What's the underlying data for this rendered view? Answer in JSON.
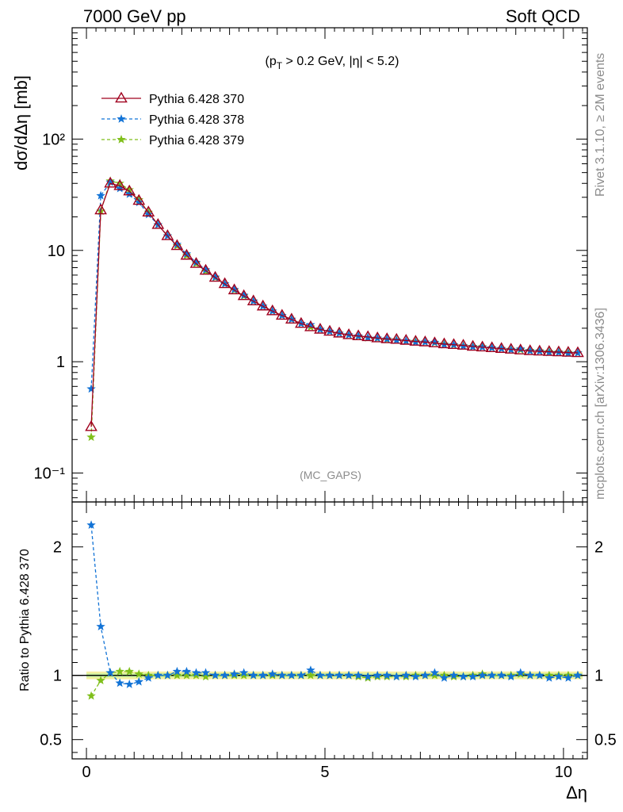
{
  "header": {
    "energy_label": "7000 GeV pp",
    "category_label": "Soft QCD"
  },
  "side_labels": {
    "rivet": "Rivet 3.1.10, ≥ 2M events",
    "mcplots": "mcplots.cern.ch [arXiv:1306.3436]"
  },
  "colors": {
    "pythia_370": "#a0001e",
    "pythia_378": "#1273d6",
    "pythia_379": "#7fbf1a",
    "band": "#f5f0a0",
    "band_inner": "#c8f0a0"
  },
  "chart_data": [
    {
      "type": "line",
      "panel": "main",
      "title": "(p_T > 0.2 GeV, |η| < 5.2)",
      "title_parts": {
        "open": "(p",
        "sub": "T",
        "rest": " > 0.2 GeV, |η| < 5.2)"
      },
      "annotation": "(MC_GAPS)",
      "xlabel": "Δη",
      "ylabel": "dσ/dΔη [mb]",
      "yscale": "log",
      "xlim": [
        -0.3,
        10.5
      ],
      "ylim": [
        0.055,
        1000
      ],
      "x_ticks": [
        "0",
        "5",
        "10"
      ],
      "y_ticks": [
        {
          "label": "10⁻¹",
          "value": 0.1
        },
        {
          "label": "1",
          "value": 1
        },
        {
          "label": "10",
          "value": 10
        },
        {
          "label": "10²",
          "value": 100
        }
      ],
      "legend_position": "top-left",
      "series": [
        {
          "name": "Pythia 6.428 370",
          "marker": "triangle",
          "dash": "solid",
          "x": [
            0.1,
            0.3,
            0.5,
            0.7,
            0.9,
            1.1,
            1.3,
            1.5,
            1.7,
            1.9,
            2.1,
            2.3,
            2.5,
            2.7,
            2.9,
            3.1,
            3.3,
            3.5,
            3.7,
            3.9,
            4.1,
            4.3,
            4.5,
            4.7,
            4.9,
            5.1,
            5.3,
            5.5,
            5.7,
            5.9,
            6.1,
            6.3,
            6.5,
            6.7,
            6.9,
            7.1,
            7.3,
            7.5,
            7.7,
            7.9,
            8.1,
            8.3,
            8.5,
            8.7,
            8.9,
            9.1,
            9.3,
            9.5,
            9.7,
            9.9,
            10.1,
            10.3
          ],
          "y": [
            0.26,
            23.0,
            40.0,
            38.0,
            34.0,
            28.0,
            22.0,
            17.0,
            13.5,
            11.0,
            9.0,
            7.6,
            6.6,
            5.7,
            5.0,
            4.4,
            3.9,
            3.5,
            3.15,
            2.85,
            2.6,
            2.4,
            2.2,
            2.05,
            1.95,
            1.87,
            1.8,
            1.74,
            1.7,
            1.67,
            1.63,
            1.6,
            1.58,
            1.55,
            1.52,
            1.5,
            1.47,
            1.44,
            1.42,
            1.4,
            1.37,
            1.35,
            1.33,
            1.31,
            1.29,
            1.27,
            1.25,
            1.24,
            1.23,
            1.22,
            1.21,
            1.2
          ]
        },
        {
          "name": "Pythia 6.428 378",
          "marker": "star",
          "dash": "dashed",
          "x": [
            0.1,
            0.3,
            0.5,
            0.7,
            0.9,
            1.1,
            1.3,
            1.5,
            1.7,
            1.9,
            2.1,
            2.3,
            2.5,
            2.7,
            2.9,
            3.1,
            3.3,
            3.5,
            3.7,
            3.9,
            4.1,
            4.3,
            4.5,
            4.7,
            4.9,
            5.1,
            5.3,
            5.5,
            5.7,
            5.9,
            6.1,
            6.3,
            6.5,
            6.7,
            6.9,
            7.1,
            7.3,
            7.5,
            7.7,
            7.9,
            8.1,
            8.3,
            8.5,
            8.7,
            8.9,
            9.1,
            9.3,
            9.5,
            9.7,
            9.9,
            10.1,
            10.3
          ],
          "y": [
            0.57,
            31.0,
            41.0,
            36.0,
            32.0,
            27.0,
            21.0,
            17.0,
            13.5,
            11.3,
            9.3,
            7.8,
            6.7,
            5.75,
            5.0,
            4.45,
            3.95,
            3.5,
            3.15,
            2.85,
            2.6,
            2.4,
            2.2,
            2.15,
            1.95,
            1.87,
            1.8,
            1.74,
            1.7,
            1.65,
            1.63,
            1.6,
            1.56,
            1.54,
            1.5,
            1.5,
            1.49,
            1.42,
            1.42,
            1.38,
            1.36,
            1.35,
            1.33,
            1.31,
            1.28,
            1.3,
            1.25,
            1.24,
            1.21,
            1.21,
            1.19,
            1.2
          ]
        },
        {
          "name": "Pythia 6.428 379",
          "marker": "star",
          "dash": "dashed",
          "x": [
            0.1,
            0.3,
            0.5,
            0.7,
            0.9,
            1.1,
            1.3,
            1.5,
            1.7,
            1.9,
            2.1,
            2.3,
            2.5,
            2.7,
            2.9,
            3.1,
            3.3,
            3.5,
            3.7,
            3.9,
            4.1,
            4.3,
            4.5,
            4.7,
            4.9,
            5.1,
            5.3,
            5.5,
            5.7,
            5.9,
            6.1,
            6.3,
            6.5,
            6.7,
            6.9,
            7.1,
            7.3,
            7.5,
            7.7,
            7.9,
            8.1,
            8.3,
            8.5,
            8.7,
            8.9,
            9.1,
            9.3,
            9.5,
            9.7,
            9.9,
            10.1,
            10.3
          ],
          "y": [
            0.21,
            22.5,
            42.0,
            40.0,
            35.0,
            28.5,
            22.0,
            17.0,
            13.5,
            11.0,
            9.0,
            7.6,
            6.5,
            5.7,
            5.0,
            4.4,
            3.9,
            3.5,
            3.15,
            2.85,
            2.6,
            2.4,
            2.2,
            2.05,
            1.95,
            1.87,
            1.8,
            1.74,
            1.69,
            1.64,
            1.62,
            1.58,
            1.57,
            1.53,
            1.52,
            1.5,
            1.48,
            1.44,
            1.41,
            1.39,
            1.37,
            1.36,
            1.33,
            1.31,
            1.29,
            1.28,
            1.26,
            1.25,
            1.23,
            1.22,
            1.21,
            1.2
          ]
        }
      ]
    },
    {
      "type": "line",
      "panel": "ratio",
      "xlabel": "Δη",
      "ylabel": "Ratio to Pythia 6.428 370",
      "xlim": [
        -0.3,
        10.5
      ],
      "ylim": [
        0.35,
        2.35
      ],
      "x_ticks": [
        "0",
        "5",
        "10"
      ],
      "y_ticks": [
        {
          "label": "0.5",
          "value": 0.5
        },
        {
          "label": "1",
          "value": 1
        },
        {
          "label": "2",
          "value": 2
        }
      ],
      "reference_line": 1,
      "series": [
        {
          "name": "Pythia 6.428 378",
          "marker": "star",
          "dash": "dashed",
          "x": [
            0.1,
            0.3,
            0.5,
            0.7,
            0.9,
            1.1,
            1.3,
            1.5,
            1.7,
            1.9,
            2.1,
            2.3,
            2.5,
            2.7,
            2.9,
            3.1,
            3.3,
            3.5,
            3.7,
            3.9,
            4.1,
            4.3,
            4.5,
            4.7,
            4.9,
            5.1,
            5.3,
            5.5,
            5.7,
            5.9,
            6.1,
            6.3,
            6.5,
            6.7,
            6.9,
            7.1,
            7.3,
            7.5,
            7.7,
            7.9,
            8.1,
            8.3,
            8.5,
            8.7,
            8.9,
            9.1,
            9.3,
            9.5,
            9.7,
            9.9,
            10.1,
            10.3
          ],
          "y": [
            2.17,
            1.38,
            1.02,
            0.94,
            0.93,
            0.95,
            0.98,
            1.0,
            1.0,
            1.03,
            1.03,
            1.02,
            1.02,
            1.0,
            1.0,
            1.01,
            1.02,
            1.0,
            1.0,
            1.01,
            1.0,
            1.0,
            1.0,
            1.04,
            1.0,
            1.0,
            1.0,
            1.0,
            1.0,
            0.99,
            1.0,
            1.0,
            0.99,
            1.0,
            0.99,
            1.0,
            1.02,
            0.98,
            1.0,
            0.99,
            0.99,
            1.0,
            1.0,
            1.0,
            0.99,
            1.02,
            1.0,
            1.0,
            0.98,
            0.99,
            0.98,
            1.0
          ]
        },
        {
          "name": "Pythia 6.428 379",
          "marker": "star",
          "dash": "dashed",
          "x": [
            0.1,
            0.3,
            0.5,
            0.7,
            0.9,
            1.1,
            1.3,
            1.5,
            1.7,
            1.9,
            2.1,
            2.3,
            2.5,
            2.7,
            2.9,
            3.1,
            3.3,
            3.5,
            3.7,
            3.9,
            4.1,
            4.3,
            4.5,
            4.7,
            4.9,
            5.1,
            5.3,
            5.5,
            5.7,
            5.9,
            6.1,
            6.3,
            6.5,
            6.7,
            6.9,
            7.1,
            7.3,
            7.5,
            7.7,
            7.9,
            8.1,
            8.3,
            8.5,
            8.7,
            8.9,
            9.1,
            9.3,
            9.5,
            9.7,
            9.9,
            10.1,
            10.3
          ],
          "y": [
            0.84,
            0.96,
            1.02,
            1.03,
            1.03,
            1.01,
            1.0,
            1.0,
            1.0,
            1.0,
            1.0,
            1.0,
            0.99,
            1.0,
            1.0,
            1.0,
            1.0,
            1.0,
            1.0,
            1.0,
            1.0,
            1.0,
            1.0,
            1.0,
            1.0,
            1.0,
            1.0,
            1.0,
            0.99,
            0.98,
            0.99,
            0.99,
            0.99,
            0.99,
            1.0,
            1.0,
            1.0,
            1.0,
            0.99,
            0.99,
            1.0,
            1.01,
            1.0,
            1.0,
            1.0,
            1.01,
            1.0,
            1.0,
            1.0,
            1.0,
            1.0,
            1.0
          ]
        }
      ]
    }
  ]
}
